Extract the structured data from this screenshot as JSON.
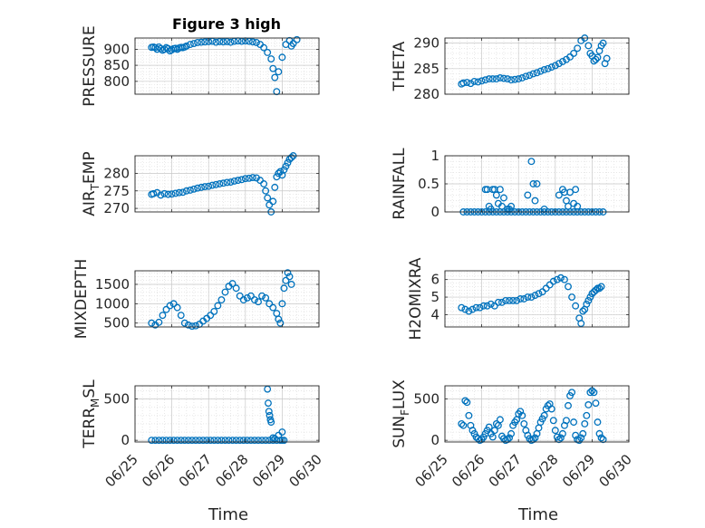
{
  "figure": {
    "title": "Figure 3 high",
    "xlabel": "Time",
    "marker_color": "#0072bd"
  },
  "chart_data": [
    {
      "type": "scatter",
      "ylabel": "PRESSURE",
      "ylim": [
        760,
        935
      ],
      "yticks": [
        800,
        850,
        900
      ],
      "ytick_labels": [
        "800",
        "850",
        "900"
      ],
      "xlim": [
        "06/25",
        "06/30"
      ],
      "xticks": [
        "06/25",
        "06/26",
        "06/27",
        "06/28",
        "06/29",
        "06/30"
      ],
      "grid": true,
      "minor_grid": true,
      "x": [
        25.45,
        25.5,
        25.55,
        25.6,
        25.65,
        25.7,
        25.75,
        25.8,
        25.85,
        25.9,
        25.95,
        26.0,
        26.05,
        26.1,
        26.15,
        26.2,
        26.25,
        26.3,
        26.35,
        26.4,
        26.5,
        26.6,
        26.7,
        26.8,
        26.9,
        27.0,
        27.1,
        27.2,
        27.3,
        27.4,
        27.5,
        27.6,
        27.7,
        27.8,
        27.9,
        28.0,
        28.1,
        28.2,
        28.3,
        28.4,
        28.5,
        28.6,
        28.7,
        28.75,
        28.8,
        28.85,
        28.9,
        29.0,
        29.1,
        29.2,
        29.25,
        29.3,
        29.4
      ],
      "y": [
        906,
        907,
        905,
        900,
        907,
        902,
        897,
        900,
        905,
        902,
        895,
        898,
        902,
        903,
        900,
        904,
        906,
        905,
        907,
        910,
        915,
        918,
        921,
        922,
        923,
        924,
        925,
        922,
        924,
        923,
        924,
        922,
        925,
        926,
        925,
        926,
        925,
        923,
        921,
        915,
        905,
        890,
        870,
        840,
        812,
        768,
        830,
        875,
        915,
        927,
        910,
        918,
        930
      ]
    },
    {
      "type": "scatter",
      "ylabel": "THETA",
      "ylim": [
        280,
        291
      ],
      "yticks": [
        280,
        285,
        290
      ],
      "ytick_labels": [
        "280",
        "285",
        "290"
      ],
      "xlim": [
        "06/25",
        "06/30"
      ],
      "xticks": [
        "06/25",
        "06/26",
        "06/27",
        "06/28",
        "06/29",
        "06/30"
      ],
      "grid": true,
      "minor_grid": true,
      "x": [
        25.45,
        25.5,
        25.6,
        25.7,
        25.8,
        25.9,
        26.0,
        26.1,
        26.2,
        26.3,
        26.4,
        26.5,
        26.6,
        26.7,
        26.8,
        26.9,
        27.0,
        27.1,
        27.2,
        27.3,
        27.4,
        27.5,
        27.6,
        27.7,
        27.8,
        27.9,
        28.0,
        28.1,
        28.2,
        28.3,
        28.4,
        28.5,
        28.6,
        28.7,
        28.8,
        28.9,
        28.95,
        29.0,
        29.05,
        29.1,
        29.15,
        29.2,
        29.25,
        29.3,
        29.35,
        29.4
      ],
      "y": [
        282,
        282.2,
        282.3,
        282.1,
        282.5,
        282.4,
        282.6,
        282.8,
        283,
        283,
        283,
        283.2,
        283.1,
        283,
        282.8,
        282.9,
        283,
        283.2,
        283.5,
        283.7,
        284,
        284.2,
        284.5,
        284.8,
        285,
        285.3,
        285.6,
        286,
        286.4,
        286.8,
        287.3,
        288,
        289,
        290.5,
        291,
        289.5,
        288,
        287.5,
        286.5,
        286.8,
        287.2,
        288.5,
        289.5,
        290,
        286,
        287
      ]
    },
    {
      "type": "scatter",
      "ylabel": "AIR_TEMP",
      "ylim": [
        269,
        285
      ],
      "yticks": [
        270,
        275,
        280
      ],
      "ytick_labels": [
        "270",
        "275",
        "280"
      ],
      "xlim": [
        "06/25",
        "06/30"
      ],
      "xticks": [
        "06/25",
        "06/26",
        "06/27",
        "06/28",
        "06/29",
        "06/30"
      ],
      "grid": true,
      "minor_grid": true,
      "x": [
        25.45,
        25.5,
        25.6,
        25.7,
        25.8,
        25.9,
        26.0,
        26.1,
        26.2,
        26.3,
        26.4,
        26.5,
        26.6,
        26.7,
        26.8,
        26.9,
        27.0,
        27.1,
        27.2,
        27.3,
        27.4,
        27.5,
        27.6,
        27.7,
        27.8,
        27.9,
        28.0,
        28.1,
        28.2,
        28.3,
        28.4,
        28.5,
        28.55,
        28.6,
        28.65,
        28.7,
        28.75,
        28.8,
        28.85,
        28.9,
        28.95,
        29.0,
        29.05,
        29.1,
        29.15,
        29.2,
        29.25,
        29.3
      ],
      "y": [
        274,
        274.2,
        274.5,
        273.8,
        274.2,
        274,
        274.1,
        274.3,
        274.5,
        274.6,
        275,
        275.2,
        275.5,
        275.8,
        276,
        276.2,
        276.3,
        276.6,
        276.8,
        277,
        277.2,
        277.4,
        277.5,
        277.8,
        278,
        278.2,
        278.5,
        278.6,
        278.8,
        278.7,
        278,
        277,
        275,
        273,
        271,
        269,
        272,
        276,
        279,
        280,
        280.5,
        279.5,
        281,
        282,
        283,
        284,
        284.5,
        285
      ]
    },
    {
      "type": "scatter",
      "ylabel": "RAINFALL",
      "ylim": [
        0,
        1
      ],
      "yticks": [
        0,
        0.5,
        1
      ],
      "ytick_labels": [
        "0",
        "0.5",
        "1"
      ],
      "xlim": [
        "06/25",
        "06/30"
      ],
      "xticks": [
        "06/25",
        "06/26",
        "06/27",
        "06/28",
        "06/29",
        "06/30"
      ],
      "grid": true,
      "minor_grid": true,
      "x": [
        25.5,
        25.6,
        25.7,
        25.8,
        25.9,
        26.0,
        26.1,
        26.2,
        26.3,
        26.4,
        26.5,
        26.6,
        26.7,
        26.8,
        26.9,
        27.0,
        27.1,
        27.2,
        27.3,
        27.4,
        27.5,
        27.6,
        27.7,
        27.8,
        27.9,
        28.0,
        28.1,
        28.2,
        28.3,
        28.4,
        28.5,
        28.6,
        28.7,
        28.8,
        28.9,
        29.0,
        29.1,
        29.2,
        29.3,
        26.1,
        26.15,
        26.3,
        26.35,
        26.4,
        26.5,
        26.6,
        26.2,
        26.25,
        26.45,
        26.55,
        26.7,
        27.25,
        27.35,
        27.4,
        27.5,
        27.45,
        28.2,
        28.25,
        28.3,
        28.35,
        28.4,
        28.5,
        28.55,
        28.6,
        26.8,
        26.75,
        28.1,
        27.7
      ],
      "y": [
        0,
        0,
        0,
        0,
        0,
        0,
        0,
        0,
        0,
        0,
        0,
        0,
        0,
        0,
        0,
        0,
        0,
        0,
        0,
        0,
        0,
        0,
        0,
        0,
        0,
        0,
        0,
        0,
        0,
        0,
        0,
        0,
        0,
        0,
        0,
        0,
        0,
        0,
        0,
        0.4,
        0.4,
        0.4,
        0.4,
        0.3,
        0.4,
        0.25,
        0.1,
        0.05,
        0.15,
        0.1,
        0.05,
        0.3,
        0.9,
        0.5,
        0.5,
        0.2,
        0.4,
        0.35,
        0.2,
        0.1,
        0.35,
        0.15,
        0.4,
        0.1,
        0.1,
        0.05,
        0.3,
        0.05
      ]
    },
    {
      "type": "scatter",
      "ylabel": "MIXDEPTH",
      "ylim": [
        400,
        1850
      ],
      "yticks": [
        500,
        1000,
        1500
      ],
      "ytick_labels": [
        "500",
        "1000",
        "1500"
      ],
      "xlim": [
        "06/25",
        "06/30"
      ],
      "xticks": [
        "06/25",
        "06/26",
        "06/27",
        "06/28",
        "06/29",
        "06/30"
      ],
      "grid": true,
      "minor_grid": true,
      "x": [
        25.45,
        25.55,
        25.65,
        25.75,
        25.85,
        25.95,
        26.05,
        26.15,
        26.25,
        26.35,
        26.45,
        26.55,
        26.65,
        26.75,
        26.85,
        26.95,
        27.05,
        27.15,
        27.25,
        27.35,
        27.45,
        27.55,
        27.65,
        27.75,
        27.85,
        27.95,
        28.05,
        28.15,
        28.25,
        28.35,
        28.45,
        28.55,
        28.65,
        28.75,
        28.85,
        28.9,
        28.95,
        29.0,
        29.05,
        29.1,
        29.15,
        29.2,
        29.25
      ],
      "y": [
        500,
        450,
        520,
        700,
        850,
        950,
        1000,
        900,
        700,
        500,
        450,
        420,
        430,
        470,
        550,
        620,
        700,
        800,
        950,
        1100,
        1300,
        1450,
        1520,
        1400,
        1200,
        1100,
        1150,
        1200,
        1100,
        1050,
        1200,
        1150,
        1000,
        900,
        750,
        600,
        500,
        1000,
        1400,
        1600,
        1800,
        1700,
        1500
      ]
    },
    {
      "type": "scatter",
      "ylabel": "H2OMIXRA",
      "ylim": [
        3.3,
        6.5
      ],
      "yticks": [
        4,
        5,
        6
      ],
      "ytick_labels": [
        "4",
        "5",
        "6"
      ],
      "xlim": [
        "06/25",
        "06/30"
      ],
      "xticks": [
        "06/25",
        "06/26",
        "06/27",
        "06/28",
        "06/29",
        "06/30"
      ],
      "grid": true,
      "minor_grid": true,
      "x": [
        25.45,
        25.55,
        25.65,
        25.75,
        25.85,
        25.95,
        26.05,
        26.15,
        26.25,
        26.35,
        26.45,
        26.55,
        26.65,
        26.75,
        26.85,
        26.95,
        27.05,
        27.15,
        27.25,
        27.35,
        27.45,
        27.55,
        27.65,
        27.75,
        27.85,
        27.95,
        28.05,
        28.15,
        28.25,
        28.35,
        28.45,
        28.55,
        28.65,
        28.7,
        28.75,
        28.8,
        28.85,
        28.9,
        28.95,
        29.0,
        29.05,
        29.1,
        29.15,
        29.2,
        29.25
      ],
      "y": [
        4.4,
        4.3,
        4.2,
        4.3,
        4.4,
        4.4,
        4.5,
        4.5,
        4.6,
        4.5,
        4.7,
        4.7,
        4.8,
        4.8,
        4.8,
        4.8,
        4.9,
        4.9,
        5.0,
        5.0,
        5.1,
        5.2,
        5.3,
        5.5,
        5.7,
        5.9,
        6.0,
        6.1,
        6.0,
        5.6,
        5.0,
        4.5,
        3.8,
        3.5,
        4.2,
        4.3,
        4.6,
        4.8,
        5.0,
        5.2,
        5.3,
        5.4,
        5.5,
        5.5,
        5.6
      ]
    },
    {
      "type": "scatter",
      "ylabel": "TERR_MSL",
      "ylim": [
        -20,
        660
      ],
      "yticks": [
        0,
        500
      ],
      "ytick_labels": [
        "0",
        "500"
      ],
      "xlim": [
        "06/25",
        "06/30"
      ],
      "xticks": [
        "06/25",
        "06/26",
        "06/27",
        "06/28",
        "06/29",
        "06/30"
      ],
      "grid": true,
      "minor_grid": true,
      "x": [
        25.45,
        25.55,
        25.65,
        25.75,
        25.85,
        25.95,
        26.05,
        26.15,
        26.25,
        26.35,
        26.45,
        26.55,
        26.65,
        26.75,
        26.85,
        26.95,
        27.05,
        27.15,
        27.25,
        27.35,
        27.45,
        27.55,
        27.65,
        27.75,
        27.85,
        27.95,
        28.05,
        28.15,
        28.25,
        28.35,
        28.45,
        28.55,
        28.65,
        28.75,
        28.85,
        28.95,
        29.0,
        29.05,
        28.6,
        28.62,
        28.64,
        28.66,
        28.68,
        28.7,
        28.75,
        28.8,
        28.9,
        29.0
      ],
      "y": [
        0,
        0,
        0,
        0,
        0,
        0,
        0,
        0,
        0,
        0,
        0,
        0,
        0,
        0,
        0,
        0,
        0,
        0,
        0,
        0,
        0,
        0,
        0,
        0,
        0,
        0,
        0,
        0,
        0,
        0,
        0,
        0,
        0,
        0,
        0,
        0,
        0,
        0,
        620,
        450,
        350,
        300,
        250,
        220,
        30,
        20,
        60,
        100
      ]
    },
    {
      "type": "scatter",
      "ylabel": "SUN_FLUX",
      "ylim": [
        -20,
        660
      ],
      "yticks": [
        0,
        500
      ],
      "ytick_labels": [
        "0",
        "500"
      ],
      "xlim": [
        "06/25",
        "06/30"
      ],
      "xticks": [
        "06/25",
        "06/26",
        "06/27",
        "06/28",
        "06/29",
        "06/30"
      ],
      "grid": true,
      "minor_grid": true,
      "x": [
        25.45,
        25.5,
        25.55,
        25.6,
        25.65,
        25.7,
        25.75,
        25.8,
        25.85,
        25.9,
        25.95,
        26.0,
        26.05,
        26.1,
        26.15,
        26.2,
        26.25,
        26.3,
        26.35,
        26.4,
        26.45,
        26.5,
        26.55,
        26.6,
        26.65,
        26.7,
        26.75,
        26.8,
        26.85,
        26.9,
        26.95,
        27.0,
        27.05,
        27.1,
        27.15,
        27.2,
        27.25,
        27.3,
        27.35,
        27.4,
        27.45,
        27.5,
        27.55,
        27.6,
        27.65,
        27.7,
        27.75,
        27.8,
        27.85,
        27.9,
        27.95,
        28.0,
        28.05,
        28.1,
        28.15,
        28.2,
        28.25,
        28.3,
        28.35,
        28.4,
        28.45,
        28.5,
        28.55,
        28.6,
        28.65,
        28.7,
        28.75,
        28.8,
        28.85,
        28.9,
        28.95,
        29.0,
        29.05,
        29.1,
        29.15,
        29.2,
        29.25,
        29.3
      ],
      "y": [
        200,
        180,
        480,
        460,
        300,
        180,
        120,
        80,
        40,
        20,
        0,
        10,
        40,
        80,
        120,
        160,
        80,
        40,
        120,
        200,
        180,
        250,
        50,
        20,
        0,
        10,
        30,
        80,
        180,
        220,
        250,
        320,
        350,
        300,
        200,
        120,
        60,
        20,
        0,
        10,
        30,
        80,
        150,
        220,
        260,
        300,
        380,
        420,
        440,
        380,
        240,
        120,
        40,
        10,
        30,
        80,
        180,
        240,
        420,
        540,
        580,
        220,
        60,
        10,
        0,
        30,
        80,
        200,
        300,
        430,
        580,
        600,
        580,
        450,
        220,
        80,
        30,
        10
      ]
    }
  ]
}
